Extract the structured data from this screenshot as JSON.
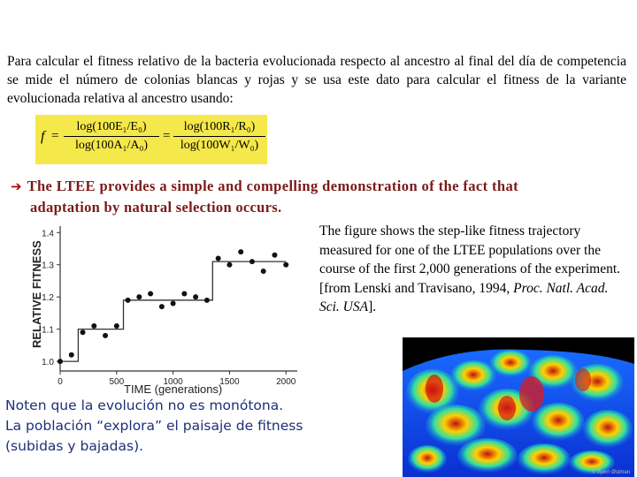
{
  "intro": {
    "paragraph": "Para calcular el fitness relativo de la bacteria evolucionada respecto al ancestro al final del día de competencia se mide el número de colonias blancas y rojas y se usa este dato para calcular el fitness de la variante evolucionada relativa al ancestro usando:"
  },
  "formula": {
    "lhs": "f",
    "eq1": "=",
    "eq2": "=",
    "frac1_num": "log(100E₁/E₀)",
    "frac1_den": "log(100A₁/A₀)",
    "frac2_num": "log(100R₁/R₀)",
    "frac2_den": "log(100W₁/W₀)",
    "background_color": "#f5e84a"
  },
  "bullet": {
    "arrow_icon": "right-arrow-icon",
    "line1": "The LTEE provides a simple and compelling demonstration of the fact that",
    "line2": "adaptation by natural selection occurs.",
    "color": "#7a1a1a"
  },
  "description": {
    "text": "The figure shows the step-like fitness trajectory measured for one of the LTEE populations over the course of the first 2,000 generations of the experiment.",
    "citation_prefix": "[from Lenski and Travisano, 1994, ",
    "citation_journal": "Proc. Natl. Acad. Sci. USA",
    "citation_suffix": "]."
  },
  "note": {
    "line1": "Noten que la evolución no es monótona.",
    "line2": "La población “explora” el paisaje de fitness",
    "line3": "(subidas y bajadas).",
    "color": "#1f2f7a"
  },
  "landscape": {
    "credit": "© Bjørn Østman"
  },
  "chart_data": {
    "type": "scatter",
    "xlabel": "TIME  (generations)",
    "ylabel": "RELATIVE FITNESS",
    "xlim": [
      0,
      2100
    ],
    "ylim": [
      0.97,
      1.42
    ],
    "xticks": [
      0,
      500,
      1000,
      1500,
      2000
    ],
    "yticks": [
      1.0,
      1.1,
      1.2,
      1.3,
      1.4
    ],
    "xtick_labels": [
      "0",
      "500",
      "1000",
      "1500",
      "2000"
    ],
    "ytick_labels": [
      "1.0",
      "1.1",
      "1.2",
      "1.3",
      "1.4"
    ],
    "points": [
      {
        "x": 0,
        "y": 1.0
      },
      {
        "x": 100,
        "y": 1.02
      },
      {
        "x": 200,
        "y": 1.09
      },
      {
        "x": 300,
        "y": 1.11
      },
      {
        "x": 400,
        "y": 1.08
      },
      {
        "x": 500,
        "y": 1.11
      },
      {
        "x": 600,
        "y": 1.19
      },
      {
        "x": 700,
        "y": 1.2
      },
      {
        "x": 800,
        "y": 1.21
      },
      {
        "x": 900,
        "y": 1.17
      },
      {
        "x": 1000,
        "y": 1.18
      },
      {
        "x": 1100,
        "y": 1.21
      },
      {
        "x": 1200,
        "y": 1.2
      },
      {
        "x": 1300,
        "y": 1.19
      },
      {
        "x": 1400,
        "y": 1.32
      },
      {
        "x": 1500,
        "y": 1.3
      },
      {
        "x": 1600,
        "y": 1.34
      },
      {
        "x": 1700,
        "y": 1.31
      },
      {
        "x": 1800,
        "y": 1.28
      },
      {
        "x": 1900,
        "y": 1.33
      },
      {
        "x": 2000,
        "y": 1.3
      }
    ],
    "step_line": [
      {
        "x": 0,
        "y": 1.0
      },
      {
        "x": 160,
        "y": 1.0
      },
      {
        "x": 160,
        "y": 1.1
      },
      {
        "x": 560,
        "y": 1.1
      },
      {
        "x": 560,
        "y": 1.19
      },
      {
        "x": 1350,
        "y": 1.19
      },
      {
        "x": 1350,
        "y": 1.31
      },
      {
        "x": 2000,
        "y": 1.31
      }
    ]
  }
}
